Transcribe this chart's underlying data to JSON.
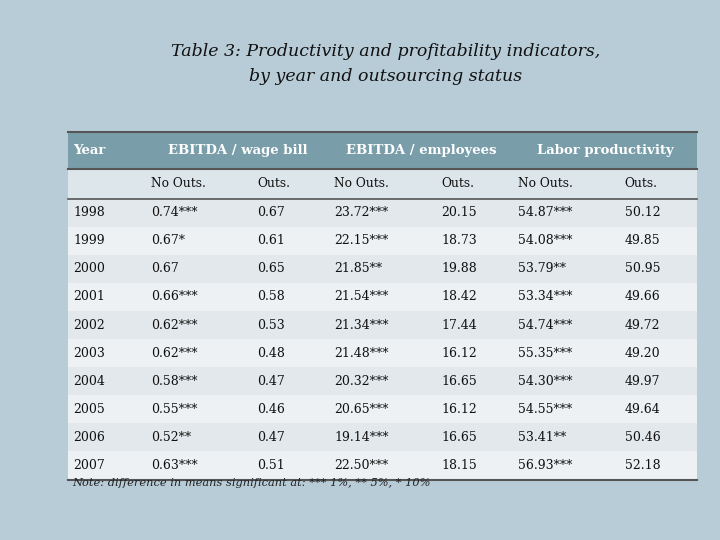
{
  "title_line1": "Table 3: Productivity and profitability indicators,",
  "title_line2": "by year and outsourcing status",
  "rows": [
    [
      "1998",
      "0.74***",
      "0.67",
      "23.72***",
      "20.15",
      "54.87***",
      "50.12"
    ],
    [
      "1999",
      "0.67*",
      "0.61",
      "22.15***",
      "18.73",
      "54.08***",
      "49.85"
    ],
    [
      "2000",
      "0.67",
      "0.65",
      "21.85**",
      "19.88",
      "53.79**",
      "50.95"
    ],
    [
      "2001",
      "0.66***",
      "0.58",
      "21.54***",
      "18.42",
      "53.34***",
      "49.66"
    ],
    [
      "2002",
      "0.62***",
      "0.53",
      "21.34***",
      "17.44",
      "54.74***",
      "49.72"
    ],
    [
      "2003",
      "0.62***",
      "0.48",
      "21.48***",
      "16.12",
      "55.35***",
      "49.20"
    ],
    [
      "2004",
      "0.58***",
      "0.47",
      "20.32***",
      "16.65",
      "54.30***",
      "49.97"
    ],
    [
      "2005",
      "0.55***",
      "0.46",
      "20.65***",
      "16.12",
      "54.55***",
      "49.64"
    ],
    [
      "2006",
      "0.52**",
      "0.47",
      "19.14***",
      "16.65",
      "53.41**",
      "50.46"
    ],
    [
      "2007",
      "0.63***",
      "0.51",
      "22.50***",
      "18.15",
      "56.93***",
      "52.18"
    ]
  ],
  "note": "Note: difference in means significant at: *** 1%, ** 5%, * 10%",
  "header_bg": "#7a9daa",
  "header_text_color": "#ffffff",
  "subheader_bg": "#dce6eb",
  "row_odd_bg": "#e2e8ec",
  "row_even_bg": "#eef1f3",
  "outer_bg": "#b8ccd8",
  "table_bg": "#f0f4f6",
  "line_color": "#555555",
  "text_color": "#111111",
  "note_color": "#222222",
  "title_color": "#111111"
}
